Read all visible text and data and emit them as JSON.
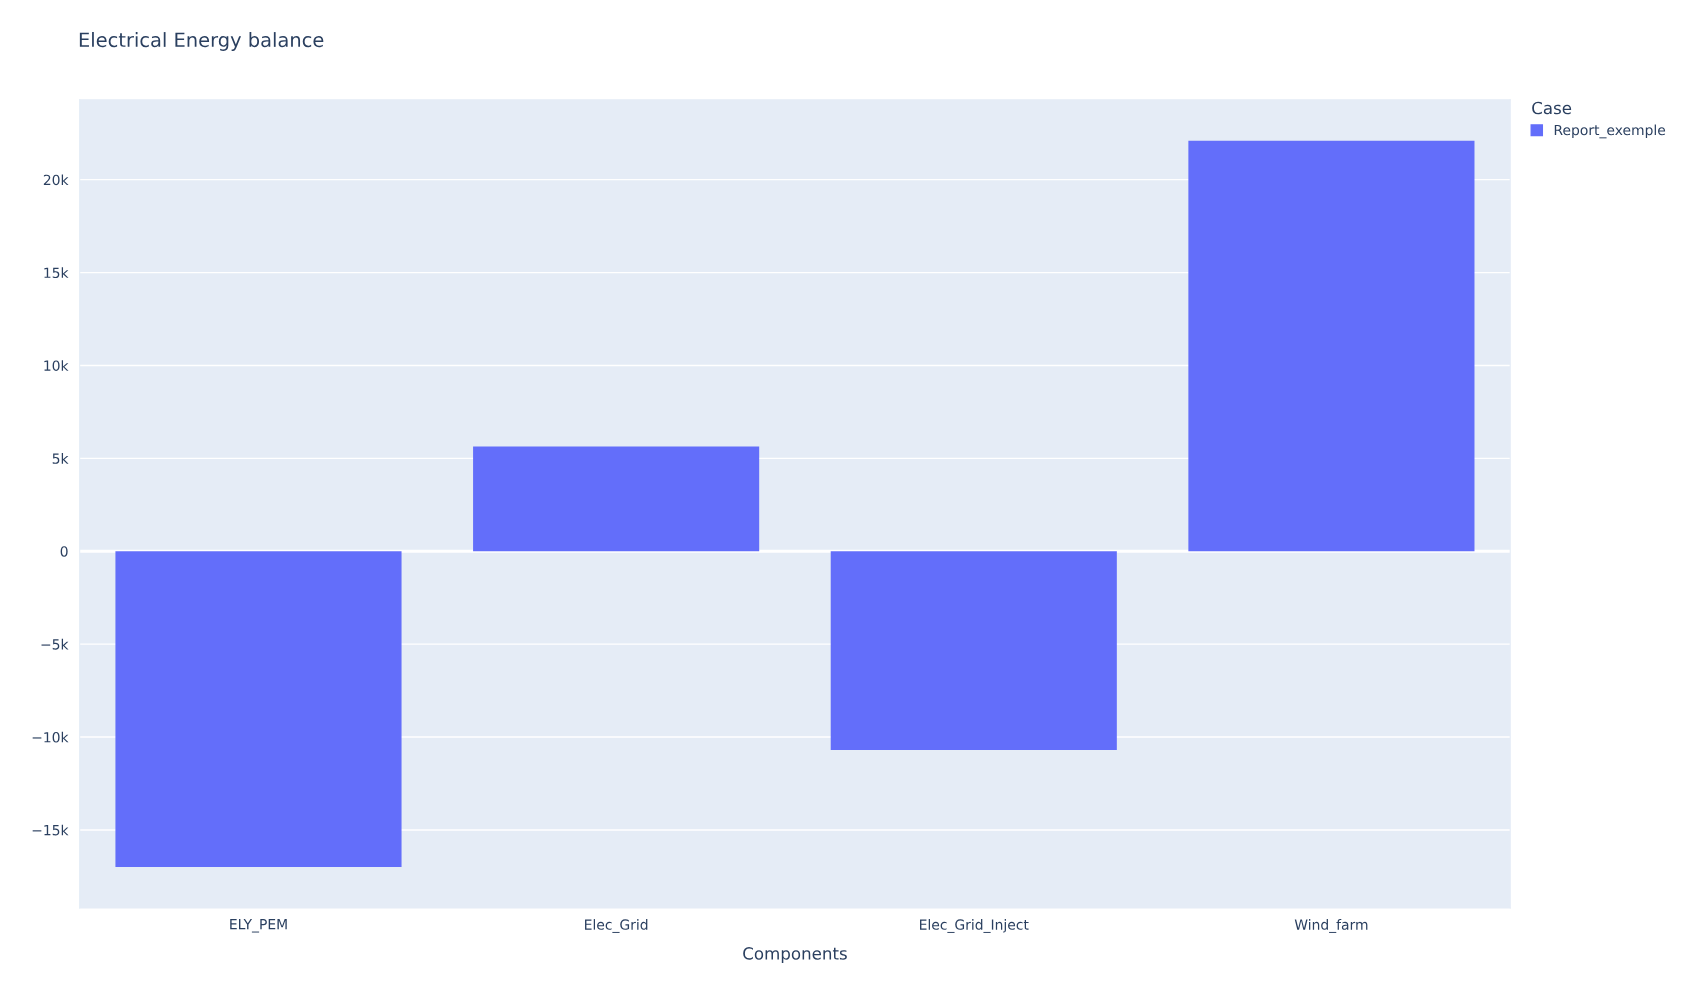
{
  "chart_data": {
    "type": "bar",
    "title": "Electrical Energy balance",
    "xlabel": "Components",
    "categories": [
      "ELY_PEM",
      "Elec_Grid",
      "Elec_Grid_Inject",
      "Wind_farm"
    ],
    "series": [
      {
        "name": "Report_exemple",
        "color": "#636efa",
        "values": [
          -17000,
          5640,
          -10700,
          22100
        ]
      }
    ],
    "legend_title": "Case",
    "legend": "top right",
    "ylim": [
      -19200,
      24300
    ],
    "yticks": [
      {
        "value": -15000,
        "label": "−15k"
      },
      {
        "value": -10000,
        "label": "−10k"
      },
      {
        "value": -5000,
        "label": "−5k"
      },
      0,
      {
        "value": 5000,
        "label": "5k"
      },
      {
        "value": 10000,
        "label": "10k"
      },
      {
        "value": 15000,
        "label": "15k"
      },
      {
        "value": 20000,
        "label": "20k"
      }
    ],
    "grid": "y"
  }
}
